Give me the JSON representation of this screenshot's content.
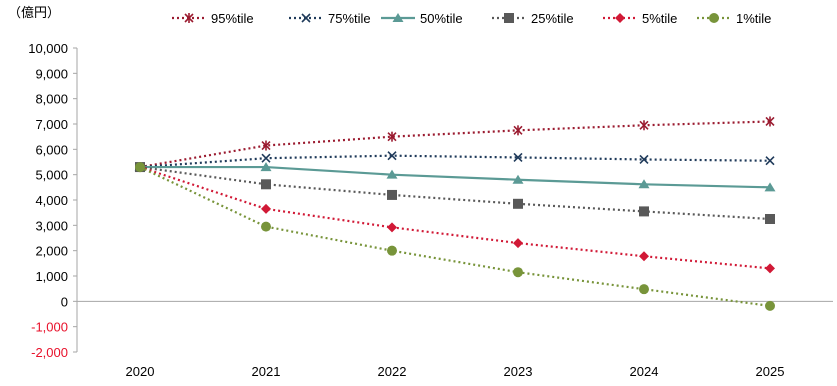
{
  "chart_data": {
    "type": "line",
    "unit_label": "（億円）",
    "categories": [
      "2020",
      "2021",
      "2022",
      "2023",
      "2024",
      "2025"
    ],
    "ylim": [
      -2000,
      10000
    ],
    "yticks": [
      -2000,
      -1000,
      0,
      1000,
      2000,
      3000,
      4000,
      5000,
      6000,
      7000,
      8000,
      9000,
      10000
    ],
    "ytick_labels": [
      "-2,000",
      "-1,000",
      "0",
      "1,000",
      "2,000",
      "3,000",
      "4,000",
      "5,000",
      "6,000",
      "7,000",
      "8,000",
      "9,000",
      "10,000"
    ],
    "negative_tick_color": "#e8102a",
    "grid": false,
    "legend_position": "top",
    "series": [
      {
        "name": "95%tile",
        "values": [
          5300,
          6150,
          6500,
          6750,
          6950,
          7100
        ],
        "color": "#9b1b30",
        "marker": "asterisk",
        "dash": "dotted"
      },
      {
        "name": "75%tile",
        "values": [
          5300,
          5650,
          5750,
          5680,
          5600,
          5550
        ],
        "color": "#1f3a5a",
        "marker": "x",
        "dash": "dotted"
      },
      {
        "name": "50%tile",
        "values": [
          5300,
          5300,
          5000,
          4800,
          4620,
          4500
        ],
        "color": "#5b9a95",
        "marker": "triangle",
        "dash": "solid"
      },
      {
        "name": "25%tile",
        "values": [
          5300,
          4620,
          4200,
          3850,
          3550,
          3250
        ],
        "color": "#595959",
        "marker": "square",
        "dash": "dotted"
      },
      {
        "name": "5%tile",
        "values": [
          5300,
          3650,
          2920,
          2300,
          1780,
          1300
        ],
        "color": "#d11936",
        "marker": "diamond",
        "dash": "dotted"
      },
      {
        "name": "1%tile",
        "values": [
          5300,
          2950,
          2000,
          1150,
          480,
          -180
        ],
        "color": "#78943a",
        "marker": "circle",
        "dash": "dotted"
      }
    ]
  }
}
